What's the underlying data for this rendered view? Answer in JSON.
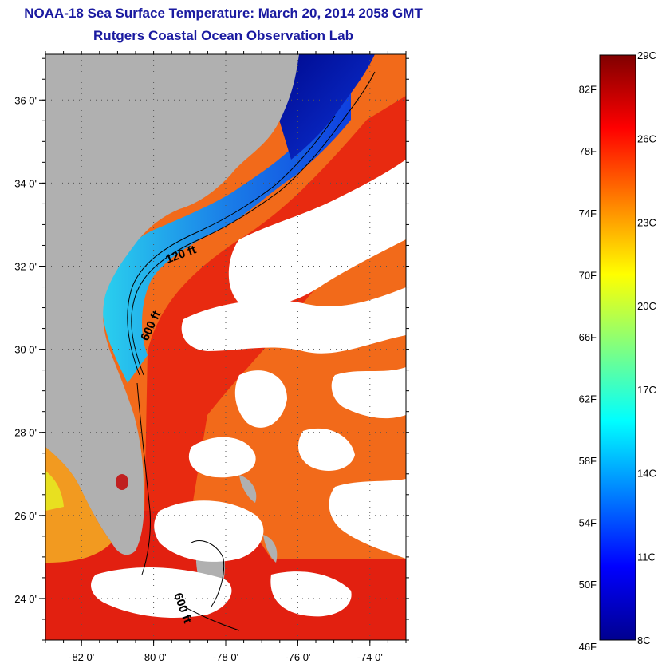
{
  "titles": {
    "line1": "NOAA-18 Sea Surface Temperature:  March 20, 2014 2058 GMT",
    "line2": "Rutgers Coastal Ocean Observation Lab"
  },
  "map": {
    "lon_ticks": [
      {
        "value": -82,
        "label": "-82 0'"
      },
      {
        "value": -80,
        "label": "-80 0'"
      },
      {
        "value": -78,
        "label": "-78 0'"
      },
      {
        "value": -76,
        "label": "-76 0'"
      },
      {
        "value": -74,
        "label": "-74 0'"
      }
    ],
    "lat_ticks": [
      {
        "value": 36,
        "label": "36 0'"
      },
      {
        "value": 34,
        "label": "34 0'"
      },
      {
        "value": 32,
        "label": "32 0'"
      },
      {
        "value": 30,
        "label": "30 0'"
      },
      {
        "value": 28,
        "label": "28 0'"
      },
      {
        "value": 26,
        "label": "26 0'"
      },
      {
        "value": 24,
        "label": "24 0'"
      }
    ],
    "lon_range": [
      -83,
      -73
    ],
    "lat_range": [
      23,
      37.1
    ],
    "grid": "dotted",
    "contour_labels": [
      {
        "text": "120 ft"
      },
      {
        "text": "600 ft"
      },
      {
        "text": "600 ft"
      }
    ],
    "colors": {
      "land": "#b0b0b0",
      "cloud": "#ffffff",
      "shelf_cold": "#0a2fd8",
      "shelf_cyan": "#30d0f0",
      "gulfstream": "#e82a10",
      "offshore": "#f26a1a"
    }
  },
  "colorbar": {
    "scale_min_c": 8,
    "scale_max_c": 29,
    "fahrenheit_labels": [
      "82F",
      "78F",
      "74F",
      "70F",
      "66F",
      "62F",
      "58F",
      "54F",
      "50F",
      "46F"
    ],
    "celsius_labels": [
      "29C",
      "26C",
      "23C",
      "20C",
      "17C",
      "14C",
      "11C",
      "8C"
    ],
    "colors": [
      "#00008f",
      "#0000ff",
      "#0080ff",
      "#00ffff",
      "#80ff80",
      "#ffff00",
      "#ff8000",
      "#ff0000",
      "#800000"
    ]
  }
}
